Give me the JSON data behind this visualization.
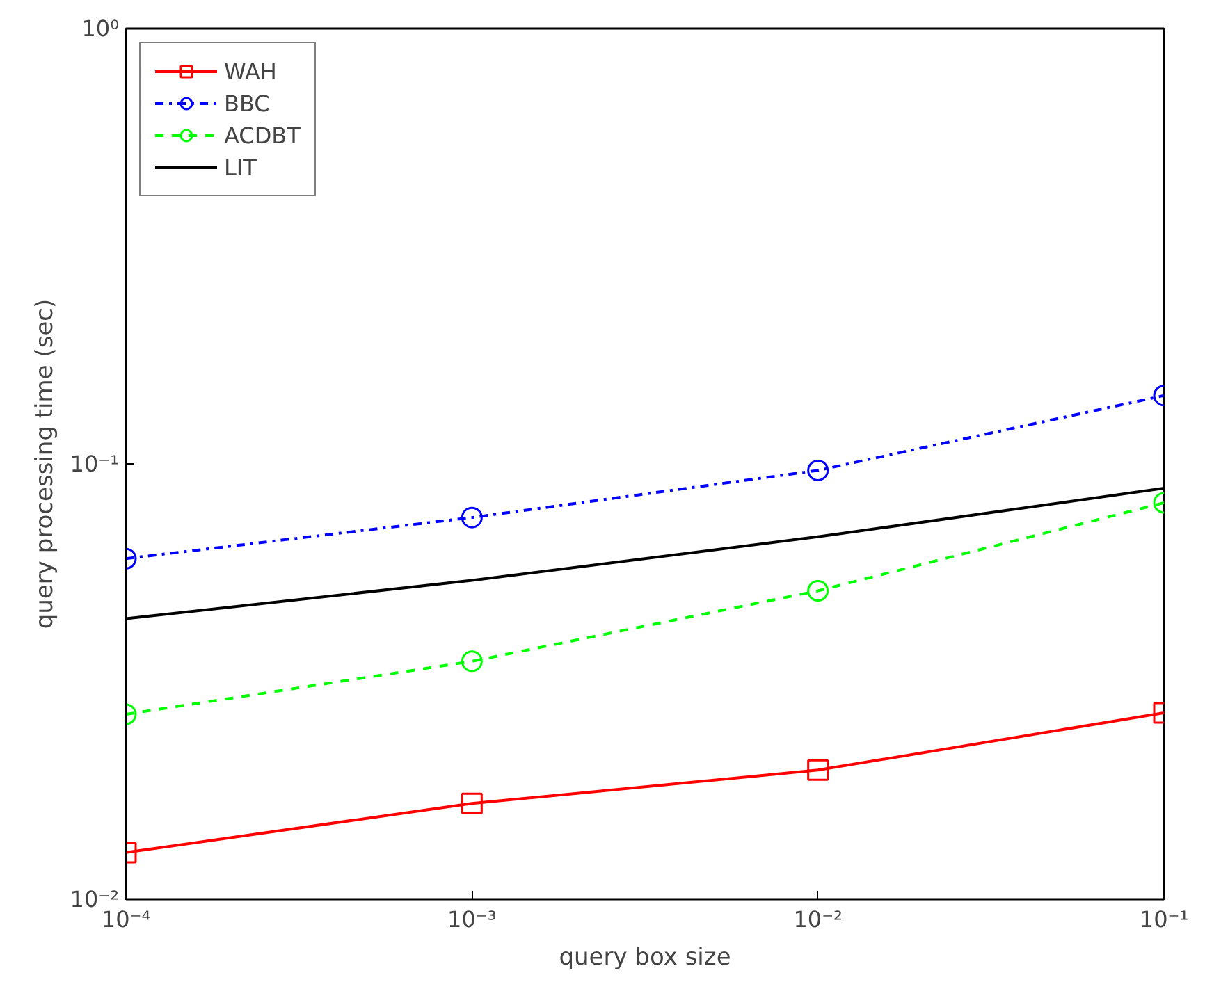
{
  "chart_data": {
    "type": "line",
    "xlabel": "query box size",
    "ylabel": "query processing time (sec)",
    "log": "xy",
    "grid": false,
    "legend": "top left",
    "x": [
      0.0001,
      0.001,
      0.01,
      0.1
    ],
    "xlim": [
      0.0001,
      0.1
    ],
    "ylim": [
      0.01,
      1
    ],
    "xticks": [
      {
        "value": 0.0001,
        "label": "10⁻⁴"
      },
      {
        "value": 0.001,
        "label": "10⁻³"
      },
      {
        "value": 0.01,
        "label": "10⁻²"
      },
      {
        "value": 0.1,
        "label": "10⁻¹"
      }
    ],
    "yticks": [
      {
        "value": 0.01,
        "label": "10⁻²"
      },
      {
        "value": 0.1,
        "label": "10⁻¹"
      },
      {
        "value": 1,
        "label": "10⁰"
      }
    ],
    "series": [
      {
        "name": "WAH",
        "color": "#ff0000",
        "marker": "square",
        "line_style": "solid",
        "values": [
          0.0128,
          0.0166,
          0.0198,
          0.0268
        ]
      },
      {
        "name": "BBC",
        "color": "#0000ff",
        "marker": "circle",
        "line_style": "dashdot",
        "values": [
          0.0606,
          0.0753,
          0.0966,
          0.1435
        ]
      },
      {
        "name": "ACDBT",
        "color": "#00ff00",
        "marker": "circle",
        "line_style": "dashed",
        "values": [
          0.0266,
          0.0352,
          0.0511,
          0.0814
        ]
      },
      {
        "name": "LIT",
        "color": "#000000",
        "marker": "none",
        "line_style": "solid",
        "values": [
          0.0441,
          0.054,
          0.068,
          0.0879
        ]
      }
    ]
  }
}
